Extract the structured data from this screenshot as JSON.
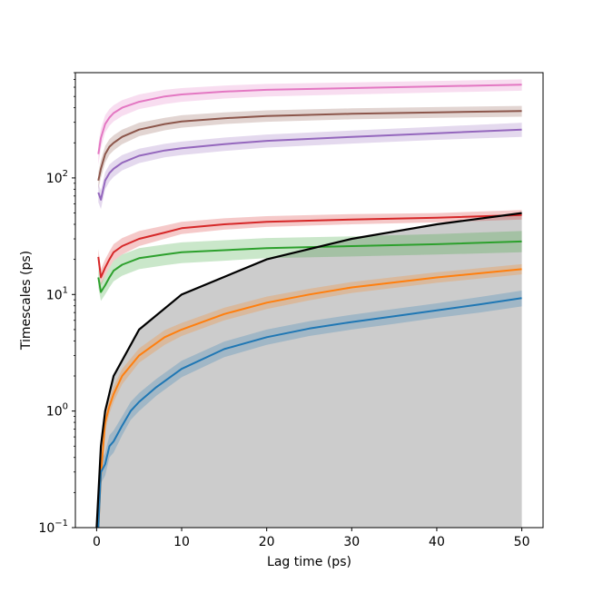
{
  "chart_data": {
    "type": "line",
    "title": "",
    "xlabel": "Lag time (ps)",
    "ylabel": "Timescales (ps)",
    "xlim": [
      -2.5,
      52.5
    ],
    "ylim": [
      0.1,
      800
    ],
    "yscale": "log",
    "grid": false,
    "legend": "none",
    "x_ticks": [
      0,
      10,
      20,
      30,
      40,
      50
    ],
    "x_tick_labels": [
      "0",
      "10",
      "20",
      "30",
      "40",
      "50"
    ],
    "y_ticks": [
      0.1,
      1,
      10,
      100
    ],
    "y_tick_labels": [
      "10",
      "10",
      "10",
      "10"
    ],
    "y_tick_exponents": [
      "−1",
      "0",
      "1",
      "2"
    ],
    "reference_line": {
      "description": "y = x (lag time), region below shaded gray",
      "color": "#000000",
      "shade_color": "#cccccc",
      "x": [
        0,
        0.5,
        1,
        2,
        5,
        10,
        20,
        30,
        40,
        50
      ],
      "y": [
        0.1,
        0.5,
        1,
        2,
        5,
        10,
        20,
        30,
        40,
        50
      ]
    },
    "series": [
      {
        "color": "#e377c2",
        "x": [
          0.2,
          0.5,
          1,
          1.5,
          2,
          3,
          5,
          8,
          10,
          15,
          20,
          30,
          40,
          50
        ],
        "y": [
          160,
          220,
          290,
          330,
          360,
          400,
          450,
          500,
          520,
          550,
          570,
          590,
          610,
          630
        ],
        "lower": [
          130,
          180,
          245,
          280,
          305,
          340,
          390,
          430,
          450,
          480,
          500,
          520,
          540,
          560
        ],
        "upper": [
          195,
          265,
          345,
          390,
          420,
          465,
          520,
          570,
          590,
          620,
          640,
          660,
          680,
          700
        ]
      },
      {
        "color": "#8c564b",
        "x": [
          0.2,
          0.5,
          1,
          1.5,
          2,
          3,
          5,
          8,
          10,
          15,
          20,
          30,
          40,
          50
        ],
        "y": [
          95,
          120,
          160,
          185,
          200,
          225,
          260,
          290,
          305,
          325,
          340,
          355,
          365,
          375
        ],
        "lower": [
          80,
          100,
          135,
          158,
          172,
          195,
          228,
          256,
          270,
          290,
          303,
          318,
          328,
          335
        ],
        "upper": [
          112,
          142,
          188,
          215,
          232,
          260,
          298,
          328,
          345,
          365,
          380,
          395,
          405,
          415
        ]
      },
      {
        "color": "#9467bd",
        "x": [
          0.2,
          0.5,
          1,
          1.5,
          2,
          3,
          5,
          8,
          10,
          15,
          20,
          30,
          40,
          50
        ],
        "y": [
          75,
          65,
          95,
          110,
          120,
          135,
          155,
          172,
          180,
          195,
          208,
          225,
          242,
          260
        ],
        "lower": [
          62,
          54,
          80,
          93,
          102,
          116,
          134,
          150,
          157,
          170,
          182,
          197,
          212,
          225
        ],
        "upper": [
          90,
          78,
          112,
          130,
          140,
          157,
          178,
          196,
          205,
          222,
          236,
          255,
          275,
          298
        ]
      },
      {
        "color": "#d62728",
        "x": [
          0.2,
          0.5,
          1,
          1.5,
          2,
          3,
          5,
          8,
          10,
          15,
          20,
          30,
          40,
          50
        ],
        "y": [
          21,
          14,
          17,
          20,
          23,
          26,
          30,
          34,
          37,
          40,
          42,
          44,
          45.5,
          48
        ],
        "lower": [
          18,
          12,
          14.5,
          17,
          19.5,
          22,
          26,
          30,
          33,
          36,
          38,
          40,
          41.5,
          44
        ],
        "upper": [
          24.5,
          16.5,
          20,
          23.5,
          27,
          30.5,
          35,
          39,
          42,
          45,
          47,
          49,
          50,
          53
        ]
      },
      {
        "color": "#2ca02c",
        "x": [
          0.2,
          0.5,
          1,
          1.5,
          2,
          3,
          5,
          8,
          10,
          15,
          20,
          30,
          40,
          50
        ],
        "y": [
          14,
          10.5,
          12,
          14,
          16,
          18,
          20.5,
          22,
          23,
          24,
          25,
          26,
          27,
          28.5
        ],
        "lower": [
          11.5,
          8.8,
          10,
          11.5,
          13,
          14.5,
          16.5,
          17.8,
          18.6,
          19.5,
          20.5,
          21.2,
          22,
          23
        ],
        "upper": [
          17,
          12.5,
          14.5,
          17,
          19.5,
          22,
          25,
          26.8,
          28,
          29.2,
          30.5,
          31.5,
          33,
          35
        ]
      },
      {
        "color": "#ff7f0e",
        "x": [
          0.2,
          0.5,
          1,
          1.5,
          2,
          3,
          5,
          8,
          10,
          15,
          20,
          25,
          30,
          40,
          50
        ],
        "y": [
          0.1,
          0.28,
          0.8,
          1.1,
          1.4,
          2,
          3,
          4.3,
          5,
          6.8,
          8.5,
          10,
          11.5,
          14,
          16.5
        ],
        "lower": [
          0.08,
          0.23,
          0.68,
          0.95,
          1.2,
          1.7,
          2.6,
          3.7,
          4.4,
          6,
          7.5,
          8.9,
          10.3,
          12.6,
          14.9
        ],
        "upper": [
          0.12,
          0.33,
          0.94,
          1.28,
          1.62,
          2.3,
          3.45,
          4.95,
          5.7,
          7.7,
          9.6,
          11.2,
          12.8,
          15.5,
          18.2
        ]
      },
      {
        "color": "#1f77b4",
        "x": [
          0.2,
          0.5,
          1,
          1.5,
          2,
          3,
          4,
          5,
          7,
          10,
          15,
          20,
          25,
          30,
          35,
          40,
          45,
          50
        ],
        "y": [
          0.1,
          0.3,
          0.35,
          0.5,
          0.55,
          0.75,
          1.0,
          1.2,
          1.6,
          2.3,
          3.4,
          4.3,
          5.1,
          5.8,
          6.5,
          7.3,
          8.2,
          9.3
        ],
        "lower": [
          0.07,
          0.24,
          0.28,
          0.4,
          0.44,
          0.62,
          0.84,
          1.0,
          1.35,
          1.95,
          2.9,
          3.7,
          4.4,
          5.0,
          5.6,
          6.3,
          7.0,
          7.9
        ],
        "upper": [
          0.13,
          0.37,
          0.44,
          0.62,
          0.68,
          0.9,
          1.2,
          1.43,
          1.88,
          2.7,
          3.95,
          5.0,
          5.9,
          6.7,
          7.5,
          8.4,
          9.5,
          10.8
        ]
      }
    ]
  }
}
